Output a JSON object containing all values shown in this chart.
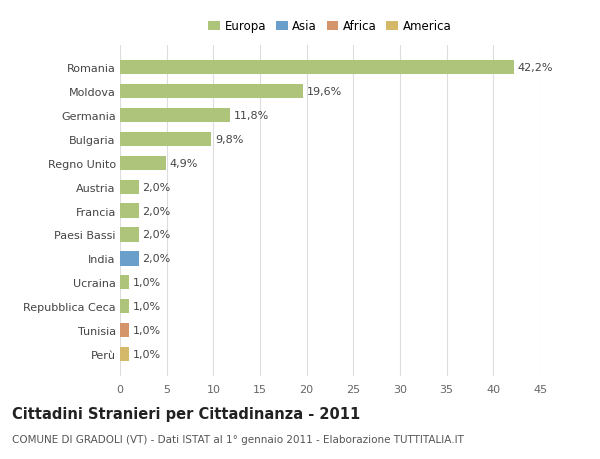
{
  "categories": [
    "Perù",
    "Tunisia",
    "Repubblica Ceca",
    "Ucraina",
    "India",
    "Paesi Bassi",
    "Francia",
    "Austria",
    "Regno Unito",
    "Bulgaria",
    "Germania",
    "Moldova",
    "Romania"
  ],
  "values": [
    1.0,
    1.0,
    1.0,
    1.0,
    2.0,
    2.0,
    2.0,
    2.0,
    4.9,
    9.8,
    11.8,
    19.6,
    42.2
  ],
  "labels": [
    "1,0%",
    "1,0%",
    "1,0%",
    "1,0%",
    "2,0%",
    "2,0%",
    "2,0%",
    "2,0%",
    "4,9%",
    "9,8%",
    "11,8%",
    "19,6%",
    "42,2%"
  ],
  "colors": [
    "#d4b96a",
    "#d4956a",
    "#adc47a",
    "#adc47a",
    "#6a9fcc",
    "#adc47a",
    "#adc47a",
    "#adc47a",
    "#adc47a",
    "#adc47a",
    "#adc47a",
    "#adc47a",
    "#adc47a"
  ],
  "legend_labels": [
    "Europa",
    "Asia",
    "Africa",
    "America"
  ],
  "legend_colors": [
    "#adc47a",
    "#6a9fcc",
    "#d4956a",
    "#d4b96a"
  ],
  "title": "Cittadini Stranieri per Cittadinanza - 2011",
  "subtitle": "COMUNE DI GRADOLI (VT) - Dati ISTAT al 1° gennaio 2011 - Elaborazione TUTTITALIA.IT",
  "xlim": [
    0,
    45
  ],
  "xticks": [
    0,
    5,
    10,
    15,
    20,
    25,
    30,
    35,
    40,
    45
  ],
  "background_color": "#ffffff",
  "grid_color": "#dddddd",
  "bar_height": 0.6,
  "label_fontsize": 8,
  "tick_fontsize": 8,
  "title_fontsize": 10.5,
  "subtitle_fontsize": 7.5
}
